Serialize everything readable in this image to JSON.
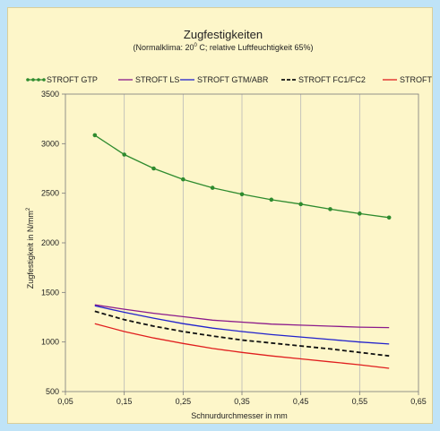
{
  "chart_data": {
    "type": "line",
    "title": "Zugfestigkeiten",
    "subtitle_before": "(Normalklima: 20",
    "subtitle_sup": "0",
    "subtitle_after": " C;  relative Luftfeuchtigkeit 65%)",
    "xlabel": "Schnurdurchmesser in mm",
    "ylabel_main": "Zugfestigkeit in N/mm",
    "ylabel_sup": "2",
    "xlim": [
      0.05,
      0.65
    ],
    "ylim": [
      500,
      3500
    ],
    "xticks": [
      0.05,
      0.15,
      0.25,
      0.35,
      0.45,
      0.55,
      0.65
    ],
    "xtick_labels": [
      "0,05",
      "0,15",
      "0,25",
      "0,35",
      "0,45",
      "0,55",
      "0,65"
    ],
    "yticks": [
      500,
      1000,
      1500,
      2000,
      2500,
      3000,
      3500
    ],
    "ytick_labels": [
      "500",
      "1000",
      "1500",
      "2000",
      "2500",
      "3000",
      "3500"
    ],
    "grid": "vertical",
    "legend_position": "top",
    "x": [
      0.1,
      0.15,
      0.2,
      0.25,
      0.3,
      0.35,
      0.4,
      0.45,
      0.5,
      0.55,
      0.6
    ],
    "series": [
      {
        "name": "STROFT GTP",
        "color": "#2e8b2e",
        "style": "solid-markers",
        "values": [
          3085,
          2890,
          2750,
          2640,
          2555,
          2490,
          2435,
          2390,
          2340,
          2295,
          2255
        ]
      },
      {
        "name": "STROFT LS",
        "color": "#8b1a8b",
        "style": "solid",
        "values": [
          1375,
          1330,
          1290,
          1255,
          1220,
          1200,
          1180,
          1170,
          1160,
          1150,
          1145
        ]
      },
      {
        "name": "STROFT GTM/ABR",
        "color": "#2222cc",
        "style": "solid",
        "values": [
          1365,
          1300,
          1240,
          1185,
          1140,
          1105,
          1075,
          1050,
          1025,
          1000,
          980
        ]
      },
      {
        "name": "STROFT FC1/FC2",
        "color": "#111111",
        "style": "dashed",
        "values": [
          1310,
          1225,
          1160,
          1105,
          1060,
          1020,
          990,
          960,
          930,
          895,
          860
        ]
      },
      {
        "name": "STROFT color",
        "color": "#e01e1e",
        "style": "solid",
        "values": [
          1185,
          1105,
          1040,
          985,
          935,
          895,
          860,
          830,
          800,
          770,
          735
        ]
      }
    ]
  }
}
